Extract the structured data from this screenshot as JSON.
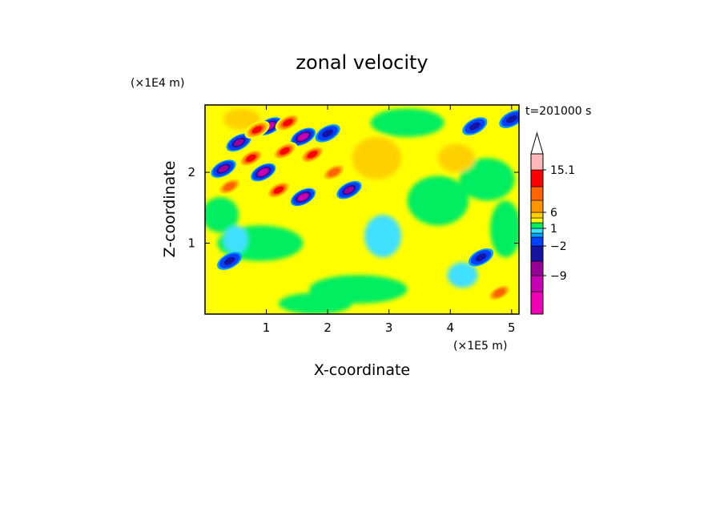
{
  "chart_data": {
    "type": "heatmap",
    "title": "zonal velocity",
    "xlabel": "X-coordinate",
    "ylabel": "Z-coordinate",
    "x_unit": "(×1E5 m)",
    "y_unit": "(×1E4 m)",
    "time_label": "t=201000 s",
    "xlim": [
      0,
      5.12
    ],
    "ylim": [
      0,
      2.95
    ],
    "x_ticks": [
      {
        "value": 1,
        "label": "1"
      },
      {
        "value": 2,
        "label": "2"
      },
      {
        "value": 3,
        "label": "3"
      },
      {
        "value": 4,
        "label": "4"
      },
      {
        "value": 5,
        "label": "5"
      }
    ],
    "y_ticks": [
      {
        "value": 1,
        "label": "1"
      },
      {
        "value": 2,
        "label": "2"
      }
    ],
    "colorbar": {
      "levels": [
        -15.1,
        -12,
        -9,
        -6,
        -2,
        -1,
        0,
        1,
        2,
        4,
        6,
        9,
        12,
        15.1
      ],
      "colors": [
        "#f000b4",
        "#c800b4",
        "#960096",
        "#1414a0",
        "#0040ff",
        "#00a0ff",
        "#40e0ff",
        "#00ee60",
        "#ffff00",
        "#ffd000",
        "#ff9600",
        "#ff6400",
        "#ff0000",
        "#ff8080",
        "#ffb8b8"
      ],
      "tick_labels": [
        {
          "value": 15.1,
          "label": "15.1"
        },
        {
          "value": 6,
          "label": "6"
        },
        {
          "value": 1,
          "label": "1"
        },
        {
          "value": -2,
          "label": "−2"
        },
        {
          "value": -9,
          "label": "−9"
        }
      ]
    },
    "features": [
      {
        "x": 1.05,
        "z": 2.65,
        "value": -12
      },
      {
        "x": 1.6,
        "z": 2.5,
        "value": -12
      },
      {
        "x": 0.55,
        "z": 2.42,
        "value": -9
      },
      {
        "x": 0.95,
        "z": 2.0,
        "value": -12
      },
      {
        "x": 0.3,
        "z": 2.05,
        "value": -9
      },
      {
        "x": 1.6,
        "z": 1.65,
        "value": -12
      },
      {
        "x": 2.35,
        "z": 1.75,
        "value": -9
      },
      {
        "x": 2.0,
        "z": 2.55,
        "value": -6
      },
      {
        "x": 0.85,
        "z": 2.6,
        "value": 9
      },
      {
        "x": 1.35,
        "z": 2.7,
        "value": 9
      },
      {
        "x": 0.75,
        "z": 2.2,
        "value": 9
      },
      {
        "x": 1.3,
        "z": 2.3,
        "value": 9
      },
      {
        "x": 1.75,
        "z": 2.25,
        "value": 9
      },
      {
        "x": 0.4,
        "z": 1.8,
        "value": 6
      },
      {
        "x": 1.2,
        "z": 1.75,
        "value": 9
      },
      {
        "x": 2.1,
        "z": 2.0,
        "value": 6
      },
      {
        "x": 4.4,
        "z": 2.65,
        "value": -6
      },
      {
        "x": 5.0,
        "z": 2.75,
        "value": -6
      },
      {
        "x": 0.4,
        "z": 0.75,
        "value": -6
      },
      {
        "x": 4.5,
        "z": 0.8,
        "value": -6
      },
      {
        "x": 4.8,
        "z": 0.3,
        "value": 6
      }
    ]
  }
}
